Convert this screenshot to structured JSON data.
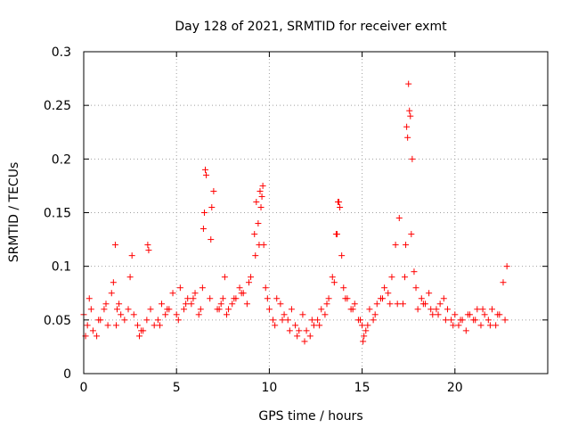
{
  "chart_data": {
    "type": "scatter",
    "title": "Day 128 of 2021, SRMTID for receiver exmt",
    "xlabel": "GPS time / hours",
    "ylabel": "SRMTID / TECUs",
    "xlim": [
      0,
      25
    ],
    "ylim": [
      0,
      0.3
    ],
    "xticks": [
      0,
      5,
      10,
      15,
      20
    ],
    "xtick_labels": [
      "0",
      "5",
      "10",
      "15",
      "20"
    ],
    "yticks": [
      0,
      0.05,
      0.1,
      0.15,
      0.2,
      0.25,
      0.3
    ],
    "ytick_labels": [
      "0",
      "0.05",
      "0.1",
      "0.15",
      "0.2",
      "0.25",
      "0.3"
    ],
    "grid": true,
    "marker": "+",
    "color": "#ff0000",
    "series": [
      {
        "name": "SRMTID",
        "x": [
          0.0,
          0.2,
          0.3,
          0.5,
          0.7,
          0.9,
          1.1,
          1.3,
          1.5,
          1.6,
          1.7,
          1.8,
          1.9,
          2.0,
          2.2,
          2.4,
          2.5,
          2.7,
          2.9,
          3.0,
          3.2,
          3.4,
          3.5,
          3.6,
          3.8,
          4.0,
          4.2,
          4.4,
          4.6,
          4.8,
          5.0,
          5.2,
          5.4,
          5.6,
          5.8,
          6.0,
          6.2,
          6.4,
          6.5,
          6.6,
          6.8,
          6.9,
          7.0,
          7.2,
          7.4,
          7.5,
          7.6,
          7.8,
          8.0,
          8.2,
          8.4,
          8.6,
          8.8,
          9.0,
          9.2,
          9.3,
          9.4,
          9.5,
          9.6,
          9.7,
          9.8,
          10.0,
          10.2,
          10.4,
          10.6,
          10.8,
          11.0,
          11.2,
          11.4,
          11.6,
          11.8,
          12.0,
          12.2,
          12.4,
          12.6,
          12.8,
          13.0,
          13.2,
          13.4,
          13.6,
          13.7,
          13.8,
          13.9,
          14.0,
          14.2,
          14.4,
          14.6,
          14.8,
          15.0,
          15.1,
          15.2,
          15.4,
          15.6,
          15.8,
          16.0,
          16.2,
          16.4,
          16.6,
          16.8,
          17.0,
          17.2,
          17.3,
          17.4,
          17.5,
          17.6,
          17.7,
          17.8,
          18.0,
          18.2,
          18.4,
          18.6,
          18.8,
          19.0,
          19.2,
          19.4,
          19.6,
          19.8,
          20.0,
          20.2,
          20.4,
          20.6,
          20.8,
          21.0,
          21.2,
          21.4,
          21.6,
          21.8,
          22.0,
          22.2,
          22.4,
          22.6,
          22.8,
          0.1,
          0.4,
          0.8,
          1.2,
          1.75,
          2.6,
          3.1,
          3.45,
          4.1,
          4.5,
          5.1,
          5.5,
          5.9,
          6.3,
          6.45,
          6.55,
          6.85,
          7.3,
          7.7,
          8.1,
          8.5,
          8.9,
          9.25,
          9.45,
          9.55,
          9.65,
          9.9,
          10.3,
          10.7,
          11.1,
          11.5,
          11.9,
          12.3,
          12.7,
          13.1,
          13.5,
          13.65,
          13.75,
          14.1,
          14.5,
          14.9,
          15.05,
          15.3,
          15.7,
          16.1,
          16.5,
          16.9,
          17.35,
          17.45,
          17.55,
          17.65,
          17.9,
          18.3,
          18.7,
          19.1,
          19.5,
          19.9,
          20.3,
          20.7,
          21.1,
          21.5,
          21.9,
          22.3,
          22.7
        ],
        "y": [
          0.055,
          0.045,
          0.07,
          0.04,
          0.035,
          0.05,
          0.06,
          0.045,
          0.075,
          0.085,
          0.12,
          0.06,
          0.065,
          0.055,
          0.05,
          0.06,
          0.09,
          0.055,
          0.045,
          0.035,
          0.04,
          0.05,
          0.115,
          0.06,
          0.045,
          0.05,
          0.065,
          0.055,
          0.06,
          0.075,
          0.055,
          0.08,
          0.06,
          0.07,
          0.065,
          0.075,
          0.055,
          0.08,
          0.15,
          0.185,
          0.07,
          0.155,
          0.17,
          0.06,
          0.065,
          0.07,
          0.09,
          0.06,
          0.065,
          0.07,
          0.08,
          0.075,
          0.065,
          0.09,
          0.13,
          0.16,
          0.14,
          0.17,
          0.165,
          0.12,
          0.08,
          0.06,
          0.05,
          0.07,
          0.065,
          0.055,
          0.05,
          0.06,
          0.045,
          0.04,
          0.055,
          0.04,
          0.035,
          0.045,
          0.05,
          0.06,
          0.055,
          0.07,
          0.09,
          0.13,
          0.16,
          0.155,
          0.11,
          0.08,
          0.07,
          0.06,
          0.065,
          0.05,
          0.045,
          0.035,
          0.04,
          0.06,
          0.05,
          0.065,
          0.07,
          0.08,
          0.075,
          0.09,
          0.12,
          0.145,
          0.065,
          0.09,
          0.23,
          0.27,
          0.24,
          0.2,
          0.095,
          0.06,
          0.07,
          0.065,
          0.075,
          0.055,
          0.06,
          0.065,
          0.07,
          0.06,
          0.05,
          0.055,
          0.045,
          0.05,
          0.04,
          0.055,
          0.05,
          0.06,
          0.045,
          0.055,
          0.05,
          0.06,
          0.045,
          0.055,
          0.085,
          0.1,
          0.035,
          0.06,
          0.05,
          0.065,
          0.045,
          0.11,
          0.04,
          0.12,
          0.045,
          0.06,
          0.05,
          0.065,
          0.07,
          0.06,
          0.135,
          0.19,
          0.125,
          0.06,
          0.055,
          0.07,
          0.075,
          0.085,
          0.11,
          0.12,
          0.155,
          0.175,
          0.07,
          0.045,
          0.05,
          0.04,
          0.035,
          0.03,
          0.05,
          0.045,
          0.065,
          0.085,
          0.13,
          0.16,
          0.07,
          0.06,
          0.05,
          0.03,
          0.045,
          0.055,
          0.07,
          0.065,
          0.065,
          0.12,
          0.22,
          0.245,
          0.13,
          0.08,
          0.065,
          0.06,
          0.055,
          0.05,
          0.045,
          0.05,
          0.055,
          0.05,
          0.06,
          0.045,
          0.055,
          0.05
        ]
      }
    ]
  }
}
